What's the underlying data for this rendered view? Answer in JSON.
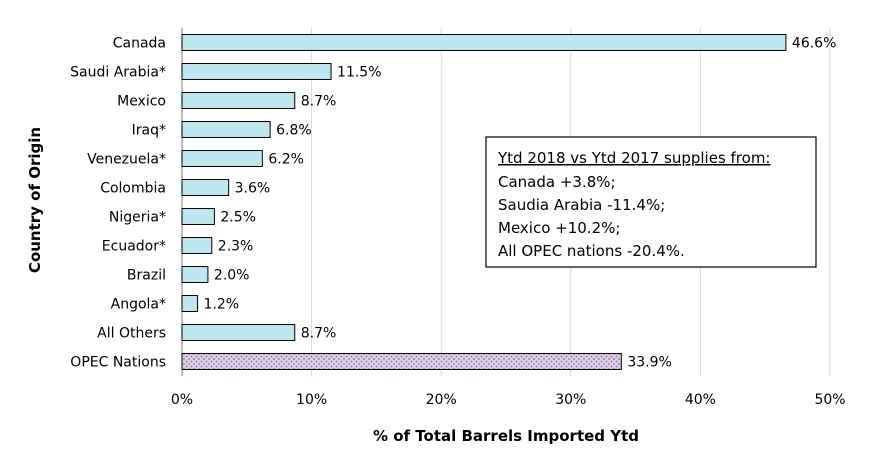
{
  "chart_data": {
    "type": "bar",
    "orientation": "horizontal",
    "categories": [
      "Canada",
      "Saudi Arabia*",
      "Mexico",
      "Iraq*",
      "Venezuela*",
      "Colombia",
      "Nigeria*",
      "Ecuador*",
      "Brazil",
      "Angola*",
      "All Others",
      "OPEC Nations"
    ],
    "values": [
      46.6,
      11.5,
      8.7,
      6.8,
      6.2,
      3.6,
      2.5,
      2.3,
      2.0,
      1.2,
      8.7,
      33.9
    ],
    "value_labels": [
      "46.6%",
      "11.5%",
      "8.7%",
      "6.8%",
      "6.2%",
      "3.6%",
      "2.5%",
      "2.3%",
      "2.0%",
      "1.2%",
      "8.7%",
      "33.9%"
    ],
    "xlim": [
      0,
      50
    ],
    "xticks": [
      0,
      10,
      20,
      30,
      40,
      50
    ],
    "xtick_labels": [
      "0%",
      "10%",
      "20%",
      "30%",
      "40%",
      "50%"
    ],
    "xlabel": "% of Total Barrels Imported Ytd",
    "ylabel": "Country of Origin",
    "grid": "vertical",
    "colors": {
      "bar_fill": "#bfe6ef",
      "opec_fill": "#ddcfe6",
      "opec_dots": "#8a6fa3",
      "bar_stroke": "#000000",
      "grid": "#d9d9d9"
    },
    "annotation": {
      "title": "Ytd 2018 vs Ytd 2017 supplies from:",
      "lines": [
        "Canada +3.8%;",
        "Saudia Arabia -11.4%;",
        "Mexico +10.2%;",
        "All OPEC nations -20.4%."
      ]
    }
  }
}
